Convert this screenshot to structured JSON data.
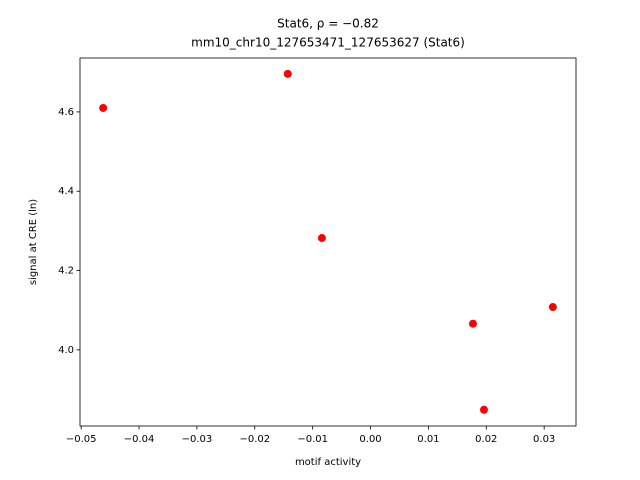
{
  "chart_data": {
    "type": "scatter",
    "title": "Stat6, ρ = −0.82",
    "subtitle": "mm10_chr10_127653471_127653627 (Stat6)",
    "x_label": "motif activity",
    "y_label": "signal at CRE (ln)",
    "color": "#ff0000",
    "series": [
      {
        "x": [
          -0.0462,
          -0.0143,
          -0.0084,
          0.0177,
          0.0196,
          0.0315
        ],
        "values": [
          4.61,
          4.696,
          4.282,
          4.066,
          3.849,
          4.108
        ]
      }
    ],
    "xlim": [
      -0.0502,
      0.0355
    ],
    "ylim": [
      3.808,
      4.736
    ],
    "xticks": [
      {
        "value": -0.05,
        "label": "−0.05"
      },
      {
        "value": -0.04,
        "label": "−0.04"
      },
      {
        "value": -0.03,
        "label": "−0.03"
      },
      {
        "value": -0.02,
        "label": "−0.02"
      },
      {
        "value": -0.01,
        "label": "−0.01"
      },
      {
        "value": 0,
        "label": "0.00"
      },
      0.01,
      0.02,
      0.03
    ],
    "yticks": [
      {
        "value": 4,
        "label": "4.0"
      },
      4.2,
      4.4,
      4.6
    ]
  }
}
